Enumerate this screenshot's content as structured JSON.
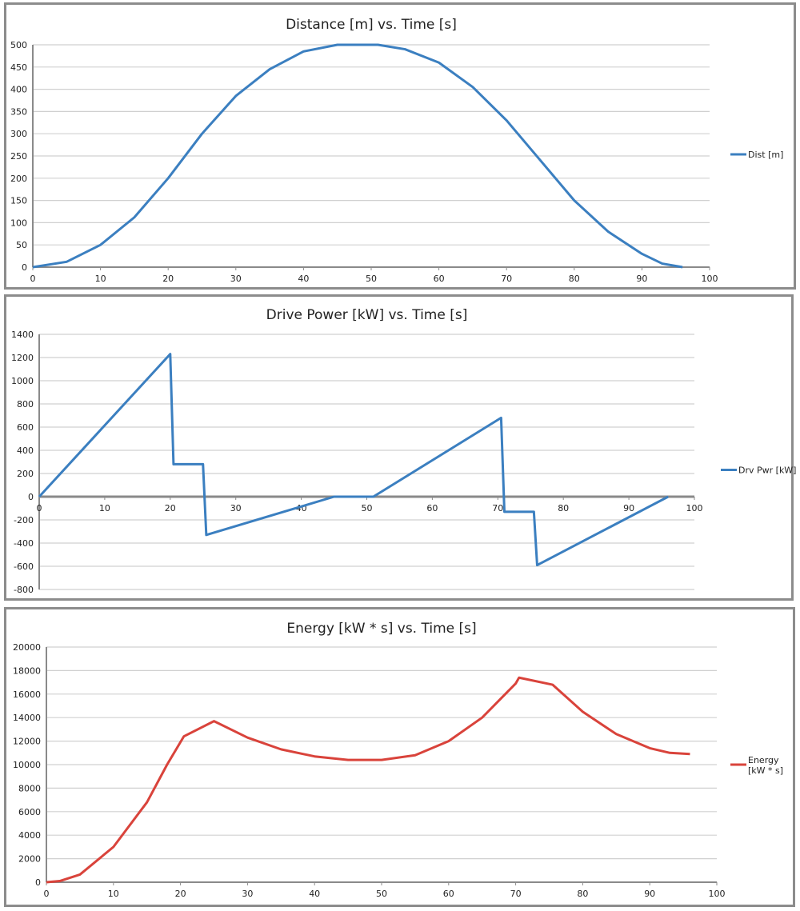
{
  "chart_data": [
    {
      "type": "line",
      "title": "Distance [m] vs. Time [s]",
      "xlabel": "",
      "ylabel": "",
      "xlim": [
        0,
        100
      ],
      "ylim": [
        0,
        500
      ],
      "xticks": [
        0,
        10,
        20,
        30,
        40,
        50,
        60,
        70,
        80,
        90,
        100
      ],
      "yticks": [
        0,
        50,
        100,
        150,
        200,
        250,
        300,
        350,
        400,
        450,
        500
      ],
      "grid": true,
      "legend": "right",
      "series": [
        {
          "name": "Dist [m]",
          "color": "#3b7fc0",
          "x": [
            0,
            5,
            10,
            15,
            20,
            25,
            30,
            35,
            40,
            45,
            51,
            55,
            60,
            65,
            70,
            75,
            80,
            85,
            90,
            93,
            96
          ],
          "y": [
            0,
            12,
            50,
            112,
            200,
            300,
            385,
            445,
            485,
            500,
            500,
            490,
            460,
            405,
            330,
            240,
            150,
            80,
            30,
            8,
            0
          ]
        }
      ]
    },
    {
      "type": "line",
      "title": "Drive Power [kW]  vs. Time [s]",
      "xlabel": "",
      "ylabel": "",
      "xlim": [
        0,
        100
      ],
      "ylim": [
        -800,
        1400
      ],
      "xticks": [
        0,
        10,
        20,
        30,
        40,
        50,
        60,
        70,
        80,
        90,
        100
      ],
      "yticks": [
        -800,
        -600,
        -400,
        -200,
        0,
        200,
        400,
        600,
        800,
        1000,
        1200,
        1400
      ],
      "grid": true,
      "legend": "right",
      "series": [
        {
          "name": "Drv Pwr [kW]",
          "color": "#3b7fc0",
          "x": [
            0,
            20,
            20.5,
            25,
            25.5,
            45,
            51,
            70.5,
            71,
            75.5,
            76,
            96
          ],
          "y": [
            0,
            1230,
            280,
            280,
            -330,
            0,
            0,
            680,
            -130,
            -130,
            -590,
            0
          ]
        }
      ]
    },
    {
      "type": "line",
      "title": "Energy [kW * s]  vs. Time [s]",
      "xlabel": "",
      "ylabel": "",
      "xlim": [
        0,
        100
      ],
      "ylim": [
        0,
        20000
      ],
      "xticks": [
        0,
        10,
        20,
        30,
        40,
        50,
        60,
        70,
        80,
        90,
        100
      ],
      "yticks": [
        0,
        2000,
        4000,
        6000,
        8000,
        10000,
        12000,
        14000,
        16000,
        18000,
        20000
      ],
      "grid": true,
      "legend": "right",
      "series": [
        {
          "name": "Energy [kW * s]",
          "legend_lines": [
            "Energy",
            "[kW * s]"
          ],
          "color": "#d9433b",
          "x": [
            0,
            2,
            5,
            10,
            15,
            18,
            20.5,
            25,
            30,
            35,
            40,
            45,
            50,
            55,
            60,
            65,
            70,
            70.5,
            75.5,
            80,
            85,
            90,
            93,
            96
          ],
          "y": [
            0,
            100,
            650,
            3000,
            6800,
            10000,
            12400,
            13700,
            12300,
            11300,
            10700,
            10400,
            10400,
            10800,
            12000,
            14000,
            16900,
            17400,
            16800,
            14500,
            12600,
            11400,
            11000,
            10900
          ]
        }
      ]
    }
  ]
}
